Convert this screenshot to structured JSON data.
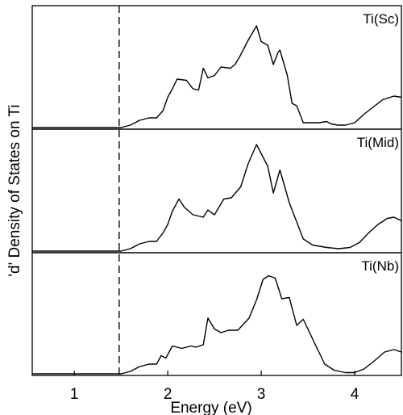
{
  "chart_data": {
    "type": "line",
    "xlabel": "Energy (eV)",
    "ylabel": "'d' Density of States on Ti",
    "xlim": [
      0.55,
      4.5
    ],
    "x_ticks": [
      1,
      2,
      3,
      4
    ],
    "x_tick_labels": [
      "1",
      "2",
      "3",
      "4"
    ],
    "dashed_vline_x": 1.48,
    "grid": false,
    "panels": [
      {
        "label": "Ti(Sc)",
        "ylim": [
          0,
          1
        ],
        "points": [
          [
            0.55,
            0
          ],
          [
            1.5,
            0
          ],
          [
            1.6,
            0.02
          ],
          [
            1.7,
            0.06
          ],
          [
            1.8,
            0.08
          ],
          [
            1.88,
            0.08
          ],
          [
            1.95,
            0.14
          ],
          [
            2.0,
            0.25
          ],
          [
            2.05,
            0.32
          ],
          [
            2.1,
            0.4
          ],
          [
            2.2,
            0.39
          ],
          [
            2.27,
            0.32
          ],
          [
            2.33,
            0.31
          ],
          [
            2.38,
            0.49
          ],
          [
            2.43,
            0.41
          ],
          [
            2.5,
            0.43
          ],
          [
            2.57,
            0.5
          ],
          [
            2.67,
            0.49
          ],
          [
            2.72,
            0.52
          ],
          [
            2.78,
            0.6
          ],
          [
            2.86,
            0.72
          ],
          [
            2.95,
            0.84
          ],
          [
            3.0,
            0.71
          ],
          [
            3.07,
            0.68
          ],
          [
            3.13,
            0.52
          ],
          [
            3.18,
            0.62
          ],
          [
            3.2,
            0.64
          ],
          [
            3.28,
            0.43
          ],
          [
            3.33,
            0.2
          ],
          [
            3.38,
            0.18
          ],
          [
            3.45,
            0.04
          ],
          [
            3.62,
            0.04
          ],
          [
            3.7,
            0.05
          ],
          [
            3.75,
            0.03
          ],
          [
            3.82,
            0.02
          ],
          [
            3.9,
            0.02
          ],
          [
            4.0,
            0.04
          ],
          [
            4.1,
            0.11
          ],
          [
            4.2,
            0.17
          ],
          [
            4.3,
            0.23
          ],
          [
            4.42,
            0.26
          ],
          [
            4.5,
            0.25
          ]
        ]
      },
      {
        "label": "Ti(Mid)",
        "ylim": [
          0,
          1
        ],
        "points": [
          [
            0.55,
            0
          ],
          [
            1.5,
            0
          ],
          [
            1.6,
            0.02
          ],
          [
            1.7,
            0.06
          ],
          [
            1.8,
            0.08
          ],
          [
            1.88,
            0.08
          ],
          [
            1.95,
            0.15
          ],
          [
            2.0,
            0.22
          ],
          [
            2.05,
            0.33
          ],
          [
            2.12,
            0.43
          ],
          [
            2.18,
            0.36
          ],
          [
            2.27,
            0.3
          ],
          [
            2.38,
            0.28
          ],
          [
            2.43,
            0.34
          ],
          [
            2.5,
            0.3
          ],
          [
            2.6,
            0.43
          ],
          [
            2.68,
            0.44
          ],
          [
            2.78,
            0.53
          ],
          [
            2.86,
            0.72
          ],
          [
            2.95,
            0.88
          ],
          [
            3.07,
            0.7
          ],
          [
            3.13,
            0.48
          ],
          [
            3.2,
            0.67
          ],
          [
            3.3,
            0.4
          ],
          [
            3.45,
            0.1
          ],
          [
            3.55,
            0.05
          ],
          [
            3.7,
            0.03
          ],
          [
            3.83,
            0.02
          ],
          [
            3.95,
            0.03
          ],
          [
            4.05,
            0.07
          ],
          [
            4.15,
            0.15
          ],
          [
            4.25,
            0.22
          ],
          [
            4.35,
            0.27
          ],
          [
            4.42,
            0.28
          ],
          [
            4.5,
            0.25
          ]
        ]
      },
      {
        "label": "Ti(Nb)",
        "ylim": [
          0,
          1
        ],
        "points": [
          [
            0.55,
            0
          ],
          [
            1.5,
            0
          ],
          [
            1.6,
            0.02
          ],
          [
            1.7,
            0.06
          ],
          [
            1.8,
            0.08
          ],
          [
            1.88,
            0.08
          ],
          [
            1.93,
            0.15
          ],
          [
            1.98,
            0.13
          ],
          [
            2.05,
            0.23
          ],
          [
            2.15,
            0.21
          ],
          [
            2.25,
            0.23
          ],
          [
            2.3,
            0.22
          ],
          [
            2.38,
            0.24
          ],
          [
            2.43,
            0.46
          ],
          [
            2.5,
            0.37
          ],
          [
            2.57,
            0.34
          ],
          [
            2.65,
            0.36
          ],
          [
            2.75,
            0.36
          ],
          [
            2.87,
            0.46
          ],
          [
            2.95,
            0.61
          ],
          [
            3.02,
            0.78
          ],
          [
            3.08,
            0.81
          ],
          [
            3.15,
            0.79
          ],
          [
            3.22,
            0.62
          ],
          [
            3.3,
            0.63
          ],
          [
            3.38,
            0.4
          ],
          [
            3.45,
            0.45
          ],
          [
            3.58,
            0.24
          ],
          [
            3.68,
            0.08
          ],
          [
            3.78,
            0.03
          ],
          [
            3.9,
            0.01
          ],
          [
            4.0,
            0.01
          ],
          [
            4.1,
            0.04
          ],
          [
            4.2,
            0.1
          ],
          [
            4.32,
            0.18
          ],
          [
            4.42,
            0.2
          ],
          [
            4.5,
            0.18
          ]
        ]
      }
    ]
  }
}
